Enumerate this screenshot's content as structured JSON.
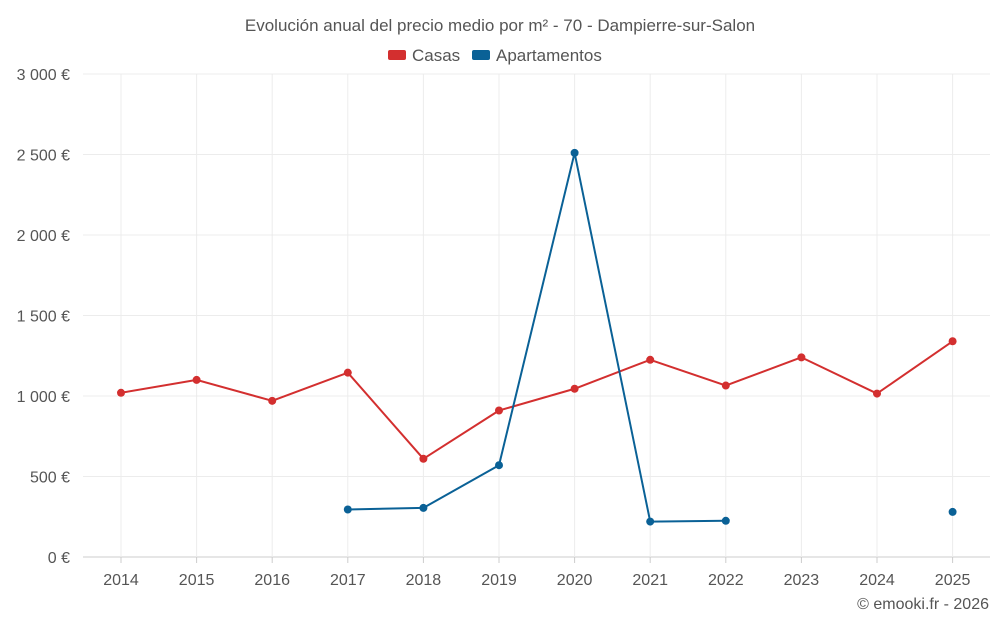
{
  "chart_data": {
    "type": "line",
    "title": "Evolución anual del precio medio por m² - 70 - Dampierre-sur-Salon",
    "categories": [
      "2014",
      "2015",
      "2016",
      "2017",
      "2018",
      "2019",
      "2020",
      "2021",
      "2022",
      "2023",
      "2024",
      "2025"
    ],
    "y_ticks": [
      0,
      500,
      1000,
      1500,
      2000,
      2500,
      3000
    ],
    "y_tick_labels": [
      "0 €",
      "500 €",
      "1 000 €",
      "1 500 €",
      "2 000 €",
      "2 500 €",
      "3 000 €"
    ],
    "ylim": [
      0,
      3000
    ],
    "grid": true,
    "legend_position": "top-center",
    "series": [
      {
        "name": "Casas",
        "color": "#d32f2f",
        "values": [
          1020,
          1100,
          970,
          1145,
          610,
          910,
          1045,
          1225,
          1065,
          1240,
          1015,
          1340
        ]
      },
      {
        "name": "Apartamentos",
        "color": "#0a6196",
        "values": [
          null,
          null,
          null,
          295,
          305,
          570,
          2510,
          220,
          225,
          null,
          null,
          280
        ]
      }
    ]
  },
  "credit": "© emooki.fr - 2026"
}
